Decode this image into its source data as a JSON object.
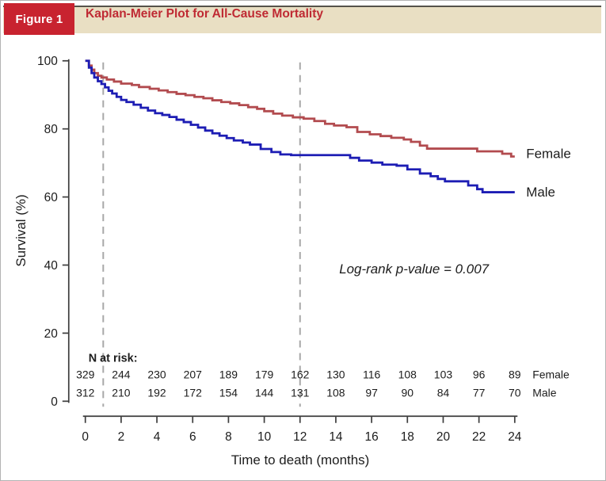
{
  "header": {
    "badge": "Figure 1",
    "title": "Kaplan-Meier Plot for All-Cause Mortality"
  },
  "colors": {
    "badge_bg": "#c8232f",
    "title_red": "#bf2a33",
    "header_bg": "#e9dfc3",
    "female": "#b24b4f",
    "male": "#1d1db4",
    "dashed_reference": "#a8a8a8",
    "axis": "#3d3d3d",
    "text": "#1c1c1c"
  },
  "chart_data": {
    "type": "line",
    "subtype": "kaplan-meier-step",
    "title": "Kaplan-Meier Plot for All-Cause Mortality",
    "xlabel": "Time to death (months)",
    "ylabel": "Survival (%)",
    "xlim": [
      0,
      24
    ],
    "ylim": [
      0,
      100
    ],
    "x_ticks": [
      0,
      2,
      4,
      6,
      8,
      10,
      12,
      14,
      16,
      18,
      20,
      22,
      24
    ],
    "y_ticks": [
      0,
      20,
      40,
      60,
      80,
      100
    ],
    "grid": false,
    "reference_lines_months": [
      1,
      12
    ],
    "annotation": "Log-rank p-value = 0.007",
    "legend_position": "right-of-curves",
    "series": [
      {
        "name": "Female",
        "color": "#b24b4f",
        "points": [
          [
            0,
            100
          ],
          [
            0.2,
            98.6
          ],
          [
            0.35,
            97.4
          ],
          [
            0.5,
            96.4
          ],
          [
            0.7,
            95.6
          ],
          [
            0.9,
            95.1
          ],
          [
            1.2,
            94.5
          ],
          [
            1.6,
            93.9
          ],
          [
            2.0,
            93.3
          ],
          [
            2.6,
            92.9
          ],
          [
            3.0,
            92.3
          ],
          [
            3.6,
            91.8
          ],
          [
            4.1,
            91.3
          ],
          [
            4.6,
            90.8
          ],
          [
            5.1,
            90.3
          ],
          [
            5.6,
            89.9
          ],
          [
            6.1,
            89.4
          ],
          [
            6.6,
            89.0
          ],
          [
            7.1,
            88.4
          ],
          [
            7.6,
            87.9
          ],
          [
            8.1,
            87.5
          ],
          [
            8.6,
            87.0
          ],
          [
            9.1,
            86.4
          ],
          [
            9.6,
            85.9
          ],
          [
            10.0,
            85.2
          ],
          [
            10.5,
            84.5
          ],
          [
            11.0,
            83.9
          ],
          [
            11.6,
            83.4
          ],
          [
            12.2,
            83.0
          ],
          [
            12.8,
            82.3
          ],
          [
            13.4,
            81.5
          ],
          [
            13.9,
            81.0
          ],
          [
            14.6,
            80.5
          ],
          [
            15.2,
            79.1
          ],
          [
            15.9,
            78.4
          ],
          [
            16.5,
            77.9
          ],
          [
            17.1,
            77.4
          ],
          [
            17.8,
            76.9
          ],
          [
            18.2,
            76.2
          ],
          [
            18.7,
            75.1
          ],
          [
            19.1,
            74.2
          ],
          [
            21.9,
            73.4
          ],
          [
            23.3,
            72.7
          ],
          [
            23.8,
            71.9
          ],
          [
            24,
            71.9
          ]
        ]
      },
      {
        "name": "Male",
        "color": "#1d1db4",
        "points": [
          [
            0,
            100
          ],
          [
            0.2,
            98.0
          ],
          [
            0.35,
            96.4
          ],
          [
            0.5,
            95.1
          ],
          [
            0.7,
            94.0
          ],
          [
            0.9,
            93.2
          ],
          [
            1.1,
            92.2
          ],
          [
            1.3,
            91.2
          ],
          [
            1.5,
            90.4
          ],
          [
            1.75,
            89.4
          ],
          [
            2.0,
            88.5
          ],
          [
            2.3,
            87.9
          ],
          [
            2.7,
            87.1
          ],
          [
            3.1,
            86.2
          ],
          [
            3.5,
            85.4
          ],
          [
            3.9,
            84.6
          ],
          [
            4.3,
            84.1
          ],
          [
            4.7,
            83.5
          ],
          [
            5.1,
            82.7
          ],
          [
            5.5,
            82.0
          ],
          [
            5.9,
            81.2
          ],
          [
            6.3,
            80.4
          ],
          [
            6.7,
            79.5
          ],
          [
            7.1,
            78.7
          ],
          [
            7.5,
            78.0
          ],
          [
            7.9,
            77.3
          ],
          [
            8.3,
            76.6
          ],
          [
            8.8,
            76.0
          ],
          [
            9.2,
            75.4
          ],
          [
            9.8,
            74.1
          ],
          [
            10.4,
            73.2
          ],
          [
            10.9,
            72.5
          ],
          [
            11.5,
            72.3
          ],
          [
            14.8,
            71.5
          ],
          [
            15.3,
            70.7
          ],
          [
            16.0,
            70.1
          ],
          [
            16.6,
            69.5
          ],
          [
            17.4,
            69.2
          ],
          [
            18.0,
            68.1
          ],
          [
            18.7,
            66.9
          ],
          [
            19.3,
            66.1
          ],
          [
            19.7,
            65.3
          ],
          [
            20.1,
            64.6
          ],
          [
            21.4,
            63.4
          ],
          [
            21.9,
            62.3
          ],
          [
            22.2,
            61.4
          ],
          [
            24,
            61.4
          ]
        ]
      }
    ],
    "risk_table": {
      "label": "N at risk:",
      "months": [
        0,
        2,
        4,
        6,
        8,
        10,
        12,
        14,
        16,
        18,
        20,
        22,
        24
      ],
      "rows": [
        {
          "name": "Female",
          "counts": [
            329,
            244,
            230,
            207,
            189,
            179,
            162,
            130,
            116,
            108,
            103,
            96,
            89
          ]
        },
        {
          "name": "Male",
          "counts": [
            312,
            210,
            192,
            172,
            154,
            144,
            131,
            108,
            97,
            90,
            84,
            77,
            70
          ]
        }
      ]
    }
  }
}
